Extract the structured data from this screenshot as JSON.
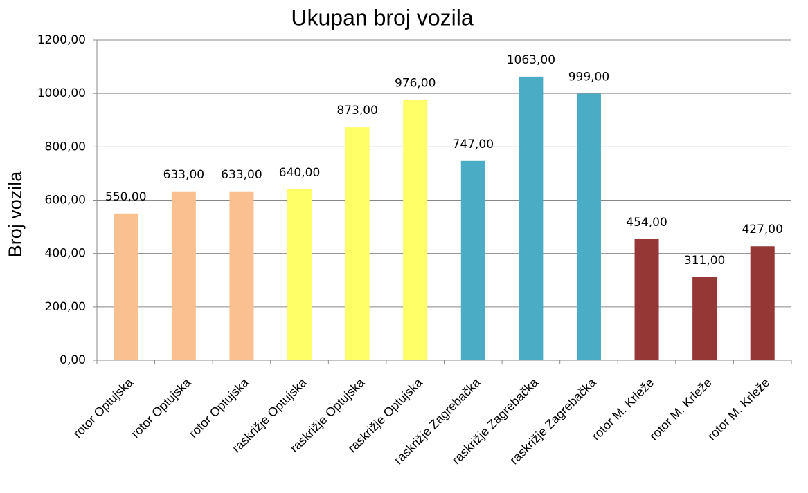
{
  "chart_data": {
    "type": "bar",
    "title": "Ukupan broj vozila",
    "y_label": "Broj vozila",
    "categories": [
      "rotor Optujska",
      "rotor Optujska",
      "rotor Optujska",
      "raskrižje Optujska",
      "raskrižje Optujska",
      "raskrižje Optujska",
      "raskrižje Zagrebačka",
      "raskrižje Zagrebačka",
      "raskrižje Zagrebačka",
      "rotor M. Krleže",
      "rotor M. Krleže",
      "rotor M. Krleže"
    ],
    "values": [
      550,
      633,
      633,
      640,
      873,
      976,
      747,
      1063,
      999,
      454,
      311,
      427
    ],
    "value_labels": [
      "550,00",
      "633,00",
      "633,00",
      "640,00",
      "873,00",
      "976,00",
      "747,00",
      "1063,00",
      "999,00",
      "454,00",
      "311,00",
      "427,00"
    ],
    "colors": [
      "#fac090",
      "#fac090",
      "#fac090",
      "#ffff66",
      "#ffff66",
      "#ffff66",
      "#4bacc6",
      "#4bacc6",
      "#4bacc6",
      "#953735",
      "#953735",
      "#953735"
    ],
    "ylim": [
      0,
      1200
    ],
    "yticks": [
      {
        "value": 0,
        "label": "0,00"
      },
      {
        "value": 200,
        "label": "200,00"
      },
      {
        "value": 400,
        "label": "400,00"
      },
      {
        "value": 600,
        "label": "600,00"
      },
      {
        "value": 800,
        "label": "800,00"
      },
      {
        "value": 1000,
        "label": "1000,00"
      },
      {
        "value": 1200,
        "label": "1200,00"
      }
    ],
    "grid": true
  }
}
